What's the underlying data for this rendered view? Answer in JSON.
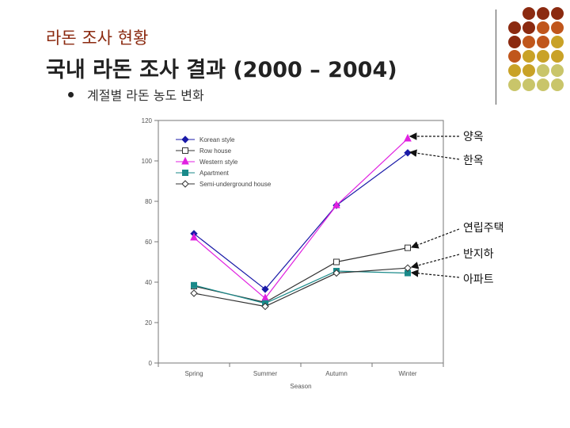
{
  "slide": {
    "subtitle": "라돈 조사 현황",
    "title": "국내 라돈 조사 결과 (2000 – 2004)",
    "bullet": "계절별 라돈 농도 변화"
  },
  "decoration": {
    "dot_colors": [
      "#8b2a10",
      "#c0561c",
      "#c9a227",
      "#c9c56a"
    ]
  },
  "callouts": [
    "양옥",
    "한옥",
    "연립주택",
    "반지하",
    "아파트"
  ],
  "chart_data": {
    "type": "line",
    "xlabel": "Season",
    "ylabel": "",
    "ylim": [
      0,
      120
    ],
    "yticks": [
      0,
      20,
      40,
      60,
      80,
      100,
      120
    ],
    "categories": [
      "Spring",
      "Summer",
      "Autumn",
      "Winter"
    ],
    "series": [
      {
        "name": "Korean style",
        "values": [
          64,
          36.5,
          78,
          104
        ],
        "color": "#1a1aa8",
        "marker": "diamond-filled"
      },
      {
        "name": "Row house",
        "values": [
          38,
          30,
          50,
          57
        ],
        "color": "#333333",
        "marker": "square-open"
      },
      {
        "name": "Western style",
        "values": [
          62,
          32,
          78,
          111
        ],
        "color": "#e020e0",
        "marker": "triangle-filled"
      },
      {
        "name": "Apartment",
        "values": [
          38.5,
          29.5,
          45.5,
          44.5
        ],
        "color": "#1a8a8a",
        "marker": "square-filled"
      },
      {
        "name": "Semi-underground house",
        "values": [
          34.5,
          28,
          44.5,
          47
        ],
        "color": "#333333",
        "marker": "diamond-open"
      }
    ],
    "legend": "top-left"
  }
}
